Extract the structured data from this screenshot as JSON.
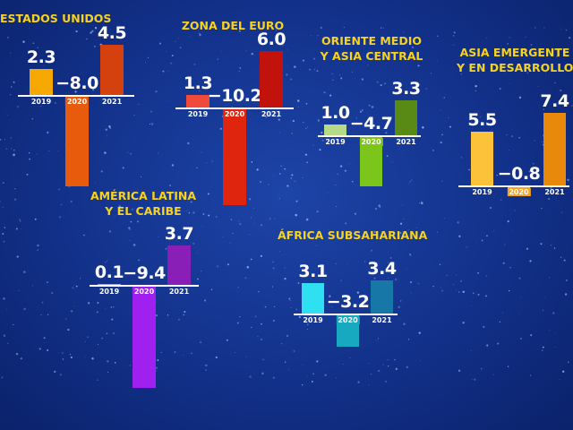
{
  "chart_data": [
    {
      "type": "bar",
      "title": "ESTADOS UNIDOS",
      "categories": [
        "2019",
        "2020",
        "2021"
      ],
      "values": [
        2.3,
        -8.0,
        4.5
      ],
      "value_labels": [
        "2.3",
        "−8.0",
        "4.5"
      ],
      "colors": [
        "#f5a800",
        "#e85a0c",
        "#d4410f"
      ]
    },
    {
      "type": "bar",
      "title": "ZONA DEL EURO",
      "categories": [
        "2019",
        "2020",
        "2021"
      ],
      "values": [
        1.3,
        -10.2,
        6.0
      ],
      "value_labels": [
        "1.3",
        "−10.2",
        "6.0"
      ],
      "colors": [
        "#f04a3a",
        "#e0250f",
        "#c2120c"
      ]
    },
    {
      "type": "bar",
      "title": "ORIENTE MEDIO\nY ASIA CENTRAL",
      "categories": [
        "2019",
        "2020",
        "2021"
      ],
      "values": [
        1.0,
        -4.7,
        3.3
      ],
      "value_labels": [
        "1.0",
        "−4.7",
        "3.3"
      ],
      "colors": [
        "#b5db8a",
        "#7cc61c",
        "#5a8a16"
      ]
    },
    {
      "type": "bar",
      "title": "ASIA EMERGENTE\nY EN DESARROLLO",
      "categories": [
        "2019",
        "2020",
        "2021"
      ],
      "values": [
        5.5,
        -0.8,
        7.4
      ],
      "value_labels": [
        "5.5",
        "−0.8",
        "7.4"
      ],
      "colors": [
        "#fcc23a",
        "#f5a623",
        "#e8890c"
      ]
    },
    {
      "type": "bar",
      "title": "AMÉRICA LATINA\nY EL CARIBE",
      "categories": [
        "2019",
        "2020",
        "2021"
      ],
      "values": [
        0.1,
        -9.4,
        3.7
      ],
      "value_labels": [
        "0.1",
        "−9.4",
        "3.7"
      ],
      "colors": [
        "#d67cf5",
        "#a020f0",
        "#8a1fb8"
      ]
    },
    {
      "type": "bar",
      "title": "ÁFRICA SUBSAHARIANA",
      "categories": [
        "2019",
        "2020",
        "2021"
      ],
      "values": [
        3.1,
        -3.2,
        3.4
      ],
      "value_labels": [
        "3.1",
        "−3.2",
        "3.4"
      ],
      "colors": [
        "#2ee0f0",
        "#17a9c0",
        "#1778a8"
      ]
    }
  ]
}
